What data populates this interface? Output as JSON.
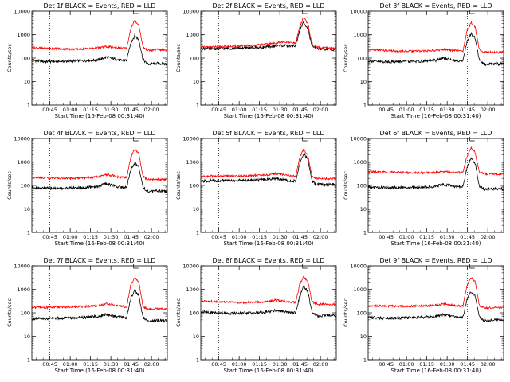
{
  "figure": {
    "ylabel": "Counts/sec",
    "xlabel": "Start Time (16-Feb-08 00:31:40)"
  },
  "chart_data": {
    "type": "line",
    "layout": "3x3 grid",
    "x_ticks": [
      "00:45",
      "01:00",
      "01:15",
      "01:30",
      "01:45",
      "02:00"
    ],
    "x_tick_minutes_after_start": [
      13.33,
      28.33,
      43.33,
      58.33,
      73.33,
      88.33
    ],
    "x_range_minutes_after_start": [
      0,
      100
    ],
    "y_scale": "log",
    "ylim": [
      1,
      10000
    ],
    "y_ticks": [
      "1",
      "10",
      "100",
      "1000",
      "10000"
    ],
    "dotted_vertical_lines_minutes": [
      13.33,
      73.33
    ],
    "colors": {
      "events": "#000000",
      "lld": "#ff0000"
    },
    "panels": [
      {
        "title": "Det 1f BLACK = Events, RED = LLD",
        "series": [
          {
            "name": "Events",
            "t": [
              0,
              10,
              20,
              30,
              40,
              50,
              55,
              60,
              65,
              70,
              73,
              76,
              79,
              82,
              85,
              88,
              92,
              100
            ],
            "v": [
              80,
              70,
              72,
              75,
              78,
              85,
              110,
              95,
              80,
              80,
              450,
              900,
              600,
              90,
              55,
              55,
              60,
              55
            ]
          },
          {
            "name": "LLD",
            "t": [
              0,
              10,
              20,
              30,
              40,
              50,
              55,
              60,
              65,
              70,
              73,
              76,
              79,
              82,
              85,
              88,
              92,
              100
            ],
            "v": [
              280,
              260,
              250,
              240,
              250,
              280,
              310,
              290,
              270,
              260,
              1800,
              4000,
              2500,
              300,
              220,
              210,
              230,
              220
            ]
          }
        ]
      },
      {
        "title": "Det 2f BLACK = Events, RED = LLD",
        "series": [
          {
            "name": "Events",
            "t": [
              0,
              10,
              20,
              30,
              40,
              50,
              55,
              60,
              65,
              70,
              73,
              76,
              79,
              82,
              85,
              88,
              92,
              100
            ],
            "v": [
              260,
              250,
              260,
              270,
              280,
              300,
              330,
              340,
              330,
              330,
              1500,
              3500,
              1800,
              320,
              260,
              240,
              240,
              230
            ]
          },
          {
            "name": "LLD",
            "t": [
              0,
              10,
              20,
              30,
              40,
              50,
              55,
              60,
              65,
              70,
              73,
              76,
              79,
              82,
              85,
              88,
              92,
              100
            ],
            "v": [
              290,
              300,
              310,
              330,
              350,
              400,
              440,
              480,
              450,
              430,
              2200,
              5500,
              3000,
              400,
              300,
              270,
              270,
              260
            ]
          }
        ]
      },
      {
        "title": "Det 3f BLACK = Events, RED = LLD",
        "series": [
          {
            "name": "Events",
            "t": [
              0,
              10,
              20,
              30,
              40,
              50,
              55,
              60,
              65,
              70,
              73,
              76,
              79,
              82,
              85,
              88,
              92,
              100
            ],
            "v": [
              75,
              70,
              70,
              72,
              74,
              80,
              100,
              90,
              78,
              78,
              500,
              1100,
              700,
              85,
              55,
              55,
              58,
              55
            ]
          },
          {
            "name": "LLD",
            "t": [
              0,
              10,
              20,
              30,
              40,
              50,
              55,
              60,
              65,
              70,
              73,
              76,
              79,
              82,
              85,
              88,
              92,
              100
            ],
            "v": [
              230,
              215,
              200,
              195,
              200,
              215,
              235,
              220,
              210,
              200,
              1500,
              3200,
              2100,
              240,
              180,
              175,
              180,
              175
            ]
          }
        ]
      },
      {
        "title": "Det 4f BLACK = Events, RED = LLD",
        "series": [
          {
            "name": "Events",
            "t": [
              0,
              10,
              20,
              30,
              40,
              50,
              55,
              60,
              65,
              70,
              73,
              76,
              79,
              82,
              85,
              88,
              92,
              100
            ],
            "v": [
              80,
              75,
              75,
              78,
              80,
              95,
              120,
              100,
              85,
              85,
              450,
              900,
              600,
              90,
              55,
              55,
              58,
              55
            ]
          },
          {
            "name": "LLD",
            "t": [
              0,
              10,
              20,
              30,
              40,
              50,
              55,
              60,
              65,
              70,
              73,
              76,
              79,
              82,
              85,
              88,
              92,
              100
            ],
            "v": [
              220,
              210,
              200,
              200,
              210,
              240,
              290,
              260,
              220,
              220,
              1500,
              3600,
              2200,
              240,
              180,
              175,
              180,
              175
            ]
          }
        ]
      },
      {
        "title": "Det 5f BLACK = Events, RED = LLD",
        "series": [
          {
            "name": "Events",
            "t": [
              0,
              10,
              20,
              30,
              40,
              50,
              55,
              60,
              65,
              70,
              73,
              76,
              79,
              82,
              85,
              88,
              92,
              100
            ],
            "v": [
              150,
              160,
              160,
              165,
              170,
              175,
              200,
              185,
              160,
              150,
              900,
              2300,
              1300,
              160,
              110,
              110,
              110,
              110
            ]
          },
          {
            "name": "LLD",
            "t": [
              0,
              10,
              20,
              30,
              40,
              50,
              55,
              60,
              65,
              70,
              73,
              76,
              79,
              82,
              85,
              88,
              92,
              100
            ],
            "v": [
              240,
              250,
              250,
              255,
              265,
              280,
              320,
              300,
              260,
              250,
              1500,
              3500,
              2000,
              260,
              200,
              195,
              195,
              190
            ]
          }
        ]
      },
      {
        "title": "Det 6f BLACK = Events, RED = LLD",
        "series": [
          {
            "name": "Events",
            "t": [
              0,
              10,
              20,
              30,
              40,
              50,
              55,
              60,
              65,
              70,
              73,
              76,
              79,
              82,
              85,
              88,
              92,
              100
            ],
            "v": [
              85,
              80,
              80,
              80,
              82,
              90,
              110,
              100,
              90,
              90,
              600,
              1400,
              900,
              95,
              70,
              70,
              72,
              70
            ]
          },
          {
            "name": "LLD",
            "t": [
              0,
              10,
              20,
              30,
              40,
              50,
              55,
              60,
              65,
              70,
              73,
              76,
              79,
              82,
              85,
              88,
              92,
              100
            ],
            "v": [
              380,
              370,
              360,
              350,
              345,
              350,
              380,
              370,
              355,
              350,
              1800,
              4000,
              2500,
              380,
              320,
              300,
              310,
              300
            ]
          }
        ]
      },
      {
        "title": "Det 7f BLACK = Events, RED = LLD",
        "series": [
          {
            "name": "Events",
            "t": [
              0,
              10,
              20,
              30,
              40,
              50,
              55,
              60,
              65,
              70,
              73,
              76,
              79,
              82,
              85,
              88,
              92,
              100
            ],
            "v": [
              55,
              55,
              60,
              60,
              65,
              70,
              85,
              75,
              65,
              60,
              400,
              900,
              550,
              65,
              45,
              45,
              47,
              45
            ]
          },
          {
            "name": "LLD",
            "t": [
              0,
              10,
              20,
              30,
              40,
              50,
              55,
              60,
              65,
              70,
              73,
              76,
              79,
              82,
              85,
              88,
              92,
              100
            ],
            "v": [
              170,
              170,
              175,
              180,
              185,
              200,
              240,
              220,
              190,
              180,
              1500,
              3200,
              2000,
              190,
              145,
              145,
              150,
              145
            ]
          }
        ]
      },
      {
        "title": "Det 8f BLACK = Events, RED = LLD",
        "series": [
          {
            "name": "Events",
            "t": [
              0,
              10,
              20,
              30,
              40,
              50,
              55,
              60,
              65,
              70,
              73,
              76,
              79,
              82,
              85,
              88,
              92,
              100
            ],
            "v": [
              110,
              100,
              95,
              95,
              100,
              110,
              130,
              115,
              100,
              100,
              500,
              1300,
              800,
              110,
              75,
              75,
              78,
              75
            ]
          },
          {
            "name": "LLD",
            "t": [
              0,
              10,
              20,
              30,
              40,
              50,
              55,
              60,
              65,
              70,
              73,
              76,
              79,
              82,
              85,
              88,
              92,
              100
            ],
            "v": [
              330,
              300,
              280,
              270,
              280,
              300,
              350,
              320,
              290,
              280,
              1600,
              3500,
              2200,
              300,
              240,
              230,
              240,
              230
            ]
          }
        ]
      },
      {
        "title": "Det 9f BLACK = Events, RED = LLD",
        "series": [
          {
            "name": "Events",
            "t": [
              0,
              10,
              20,
              30,
              40,
              50,
              55,
              60,
              65,
              70,
              73,
              76,
              79,
              82,
              85,
              88,
              92,
              100
            ],
            "v": [
              65,
              60,
              60,
              62,
              65,
              70,
              85,
              75,
              65,
              65,
              350,
              800,
              500,
              70,
              48,
              48,
              50,
              48
            ]
          },
          {
            "name": "LLD",
            "t": [
              0,
              10,
              20,
              30,
              40,
              50,
              55,
              60,
              65,
              70,
              73,
              76,
              79,
              82,
              85,
              88,
              92,
              100
            ],
            "v": [
              200,
              195,
              190,
              190,
              195,
              210,
              240,
              220,
              200,
              195,
              1500,
              3300,
              2100,
              210,
              165,
              160,
              165,
              160
            ]
          }
        ]
      }
    ]
  }
}
